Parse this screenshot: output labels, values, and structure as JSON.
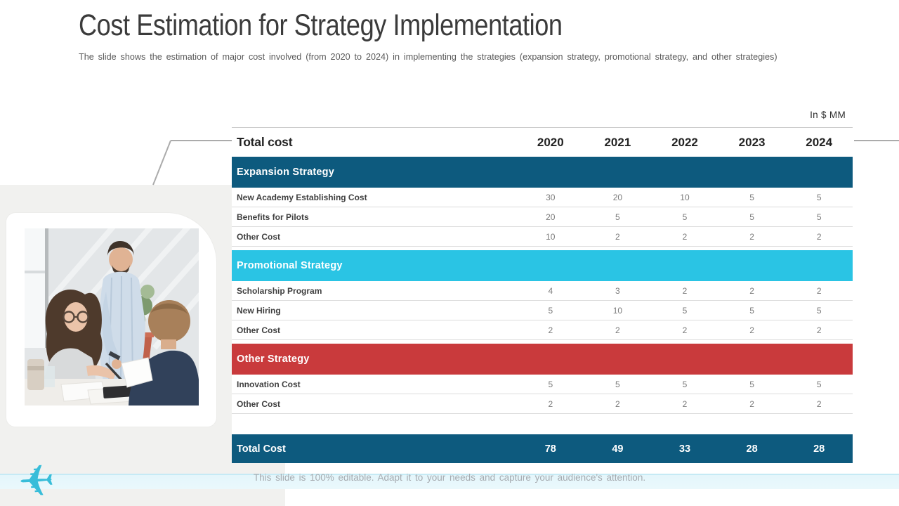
{
  "slide": {
    "title": "Cost Estimation for Strategy Implementation",
    "subtitle": "The slide shows the estimation of major cost involved  (from 2020 to 2024) in implementing the strategies (expansion strategy, promotional strategy, and other strategies)",
    "footer_note": "This slide is 100% editable. Adapt it to your needs and capture your audience's attention."
  },
  "table": {
    "units_label": "In $ MM",
    "header": {
      "label": "Total cost",
      "years": [
        "2020",
        "2021",
        "2022",
        "2023",
        "2024"
      ]
    },
    "sections": [
      {
        "name": "Expansion Strategy",
        "color": "#0d5a7e",
        "rows": [
          {
            "label": "New Academy Establishing Cost",
            "values": [
              30,
              20,
              10,
              5,
              5
            ]
          },
          {
            "label": "Benefits for Pilots",
            "values": [
              20,
              5,
              5,
              5,
              5
            ]
          },
          {
            "label": "Other Cost",
            "values": [
              10,
              2,
              2,
              2,
              2
            ]
          }
        ]
      },
      {
        "name": "Promotional Strategy",
        "color": "#2ac4e4",
        "rows": [
          {
            "label": "Scholarship Program",
            "values": [
              4,
              3,
              2,
              2,
              2
            ]
          },
          {
            "label": "New Hiring",
            "values": [
              5,
              10,
              5,
              5,
              5
            ]
          },
          {
            "label": "Other Cost",
            "values": [
              2,
              2,
              2,
              2,
              2
            ]
          }
        ]
      },
      {
        "name": "Other Strategy",
        "color": "#c93a3c",
        "rows": [
          {
            "label": "Innovation Cost",
            "values": [
              5,
              5,
              5,
              5,
              5
            ]
          },
          {
            "label": "Other Cost",
            "values": [
              2,
              2,
              2,
              2,
              2
            ]
          }
        ]
      }
    ],
    "total": {
      "label": "Total Cost",
      "values": [
        78,
        49,
        33,
        28,
        28
      ],
      "color": "#0d5a7e"
    }
  },
  "icons": {
    "plane": "✈"
  },
  "colors": {
    "accent_dark_blue": "#0d5a7e",
    "accent_cyan": "#2ac4e4",
    "accent_red": "#c93a3c",
    "panel_gray": "#f1f1ef",
    "stripe_cyan": "#e4f6fb",
    "plane_teal": "#38bdd9"
  }
}
